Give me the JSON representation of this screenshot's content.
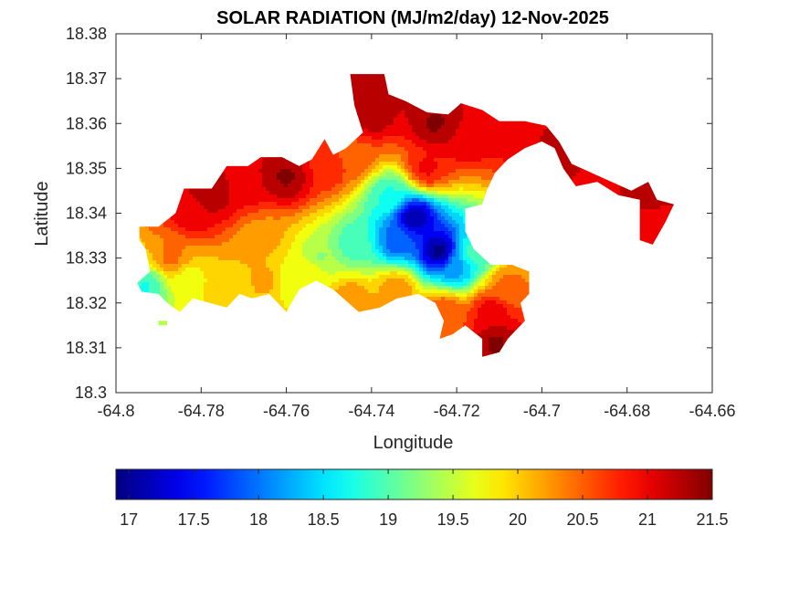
{
  "chart_data": {
    "type": "heatmap",
    "title": "SOLAR RADIATION (MJ/m2/day) 12-Nov-2025",
    "xlabel": "Longitude",
    "ylabel": "Latitude",
    "xlim": [
      -64.8,
      -64.66
    ],
    "ylim": [
      18.3,
      18.38
    ],
    "x_ticks": [
      "-64.8",
      "-64.78",
      "-64.76",
      "-64.74",
      "-64.72",
      "-64.7",
      "-64.68",
      "-64.66"
    ],
    "x_tick_values": [
      -64.8,
      -64.78,
      -64.76,
      -64.74,
      -64.72,
      -64.7,
      -64.68,
      -64.66
    ],
    "y_ticks": [
      "18.3",
      "18.31",
      "18.32",
      "18.33",
      "18.34",
      "18.35",
      "18.36",
      "18.37",
      "18.38"
    ],
    "y_tick_values": [
      18.3,
      18.31,
      18.32,
      18.33,
      18.34,
      18.35,
      18.36,
      18.37,
      18.38
    ],
    "grid": false,
    "colormap": "jet",
    "colorbar": {
      "placement": "bottom",
      "range": [
        16.9,
        21.5
      ],
      "ticks": [
        "17",
        "17.5",
        "18",
        "18.5",
        "19",
        "19.5",
        "20",
        "20.5",
        "21",
        "21.5"
      ],
      "tick_values": [
        17,
        17.5,
        18,
        18.5,
        19,
        19.5,
        20,
        20.5,
        21,
        21.5
      ]
    },
    "land_outline": [
      [
        -64.7945,
        18.337
      ],
      [
        -64.79,
        18.337
      ],
      [
        -64.786,
        18.34
      ],
      [
        -64.784,
        18.3455
      ],
      [
        -64.7775,
        18.3455
      ],
      [
        -64.774,
        18.3505
      ],
      [
        -64.769,
        18.3505
      ],
      [
        -64.766,
        18.3525
      ],
      [
        -64.761,
        18.3525
      ],
      [
        -64.757,
        18.3505
      ],
      [
        -64.754,
        18.352
      ],
      [
        -64.751,
        18.3565
      ],
      [
        -64.749,
        18.353
      ],
      [
        -64.746,
        18.3545
      ],
      [
        -64.742,
        18.358
      ],
      [
        -64.744,
        18.364
      ],
      [
        -64.745,
        18.371
      ],
      [
        -64.737,
        18.371
      ],
      [
        -64.736,
        18.3665
      ],
      [
        -64.732,
        18.365
      ],
      [
        -64.727,
        18.3625
      ],
      [
        -64.722,
        18.362
      ],
      [
        -64.719,
        18.3645
      ],
      [
        -64.714,
        18.363
      ],
      [
        -64.71,
        18.3605
      ],
      [
        -64.704,
        18.3605
      ],
      [
        -64.699,
        18.3595
      ],
      [
        -64.696,
        18.356
      ],
      [
        -64.693,
        18.351
      ],
      [
        -64.686,
        18.348
      ],
      [
        -64.679,
        18.345
      ],
      [
        -64.675,
        18.347
      ],
      [
        -64.673,
        18.343
      ],
      [
        -64.669,
        18.342
      ],
      [
        -64.671,
        18.338
      ],
      [
        -64.674,
        18.333
      ],
      [
        -64.677,
        18.334
      ],
      [
        -64.677,
        18.343
      ],
      [
        -64.682,
        18.344
      ],
      [
        -64.687,
        18.347
      ],
      [
        -64.692,
        18.346
      ],
      [
        -64.695,
        18.35
      ],
      [
        -64.697,
        18.3545
      ],
      [
        -64.7,
        18.356
      ],
      [
        -64.704,
        18.3545
      ],
      [
        -64.708,
        18.352
      ],
      [
        -64.711,
        18.349
      ],
      [
        -64.713,
        18.345
      ],
      [
        -64.714,
        18.342
      ],
      [
        -64.718,
        18.341
      ],
      [
        -64.718,
        18.336
      ],
      [
        -64.716,
        18.332
      ],
      [
        -64.712,
        18.3285
      ],
      [
        -64.707,
        18.3285
      ],
      [
        -64.703,
        18.327
      ],
      [
        -64.703,
        18.322
      ],
      [
        -64.705,
        18.32
      ],
      [
        -64.704,
        18.316
      ],
      [
        -64.708,
        18.312
      ],
      [
        -64.71,
        18.309
      ],
      [
        -64.714,
        18.308
      ],
      [
        -64.714,
        18.312
      ],
      [
        -64.718,
        18.315
      ],
      [
        -64.721,
        18.313
      ],
      [
        -64.724,
        18.312
      ],
      [
        -64.723,
        18.316
      ],
      [
        -64.725,
        18.32
      ],
      [
        -64.729,
        18.322
      ],
      [
        -64.734,
        18.321
      ],
      [
        -64.738,
        18.319
      ],
      [
        -64.743,
        18.318
      ],
      [
        -64.749,
        18.323
      ],
      [
        -64.753,
        18.325
      ],
      [
        -64.757,
        18.323
      ],
      [
        -64.76,
        18.318
      ],
      [
        -64.764,
        18.322
      ],
      [
        -64.768,
        18.321
      ],
      [
        -64.771,
        18.322
      ],
      [
        -64.774,
        18.319
      ],
      [
        -64.778,
        18.32
      ],
      [
        -64.782,
        18.321
      ],
      [
        -64.785,
        18.318
      ],
      [
        -64.788,
        18.32
      ],
      [
        -64.79,
        18.322
      ],
      [
        -64.794,
        18.3225
      ],
      [
        -64.795,
        18.3245
      ],
      [
        -64.792,
        18.327
      ],
      [
        -64.793,
        18.332
      ],
      [
        -64.7945,
        18.334
      ]
    ],
    "island_patches": [
      [
        [
          -64.79,
          18.315
        ],
        [
          -64.788,
          18.315
        ],
        [
          -64.788,
          18.316
        ],
        [
          -64.79,
          18.316
        ]
      ]
    ],
    "field_anchors": [
      {
        "lon": -64.73,
        "lat": 18.339,
        "value": 17.1
      },
      {
        "lon": -64.724,
        "lat": 18.3315,
        "value": 16.95
      },
      {
        "lon": -64.734,
        "lat": 18.334,
        "value": 17.9
      },
      {
        "lon": -64.72,
        "lat": 18.328,
        "value": 18.2
      },
      {
        "lon": -64.744,
        "lat": 18.333,
        "value": 18.9
      },
      {
        "lon": -64.716,
        "lat": 18.331,
        "value": 18.9
      },
      {
        "lon": -64.752,
        "lat": 18.33,
        "value": 19.3
      },
      {
        "lon": -64.736,
        "lat": 18.344,
        "value": 18.8
      },
      {
        "lon": -64.76,
        "lat": 18.325,
        "value": 19.6
      },
      {
        "lon": -64.766,
        "lat": 18.334,
        "value": 20.2
      },
      {
        "lon": -64.774,
        "lat": 18.324,
        "value": 20.0
      },
      {
        "lon": -64.783,
        "lat": 18.325,
        "value": 19.7
      },
      {
        "lon": -64.793,
        "lat": 18.3235,
        "value": 18.8
      },
      {
        "lon": -64.787,
        "lat": 18.33,
        "value": 20.4
      },
      {
        "lon": -64.782,
        "lat": 18.34,
        "value": 21.0
      },
      {
        "lon": -64.778,
        "lat": 18.344,
        "value": 21.3
      },
      {
        "lon": -64.77,
        "lat": 18.347,
        "value": 21.1
      },
      {
        "lon": -64.76,
        "lat": 18.348,
        "value": 21.4
      },
      {
        "lon": -64.75,
        "lat": 18.35,
        "value": 20.8
      },
      {
        "lon": -64.744,
        "lat": 18.352,
        "value": 20.5
      },
      {
        "lon": -64.74,
        "lat": 18.362,
        "value": 21.3
      },
      {
        "lon": -64.739,
        "lat": 18.369,
        "value": 21.2
      },
      {
        "lon": -64.725,
        "lat": 18.36,
        "value": 21.4
      },
      {
        "lon": -64.727,
        "lat": 18.35,
        "value": 20.9
      },
      {
        "lon": -64.718,
        "lat": 18.357,
        "value": 21.1
      },
      {
        "lon": -64.705,
        "lat": 18.358,
        "value": 21.0
      },
      {
        "lon": -64.696,
        "lat": 18.354,
        "value": 21.3
      },
      {
        "lon": -64.688,
        "lat": 18.347,
        "value": 21.1
      },
      {
        "lon": -64.674,
        "lat": 18.344,
        "value": 21.3
      },
      {
        "lon": -64.673,
        "lat": 18.338,
        "value": 20.9
      },
      {
        "lon": -64.708,
        "lat": 18.324,
        "value": 20.4
      },
      {
        "lon": -64.712,
        "lat": 18.318,
        "value": 21.0
      },
      {
        "lon": -64.711,
        "lat": 18.311,
        "value": 21.4
      },
      {
        "lon": -64.723,
        "lat": 18.318,
        "value": 20.6
      },
      {
        "lon": -64.734,
        "lat": 18.323,
        "value": 20.3
      },
      {
        "lon": -64.745,
        "lat": 18.321,
        "value": 20.3
      },
      {
        "lon": -64.754,
        "lat": 18.327,
        "value": 19.8
      },
      {
        "lon": -64.764,
        "lat": 18.325,
        "value": 20.2
      }
    ]
  }
}
